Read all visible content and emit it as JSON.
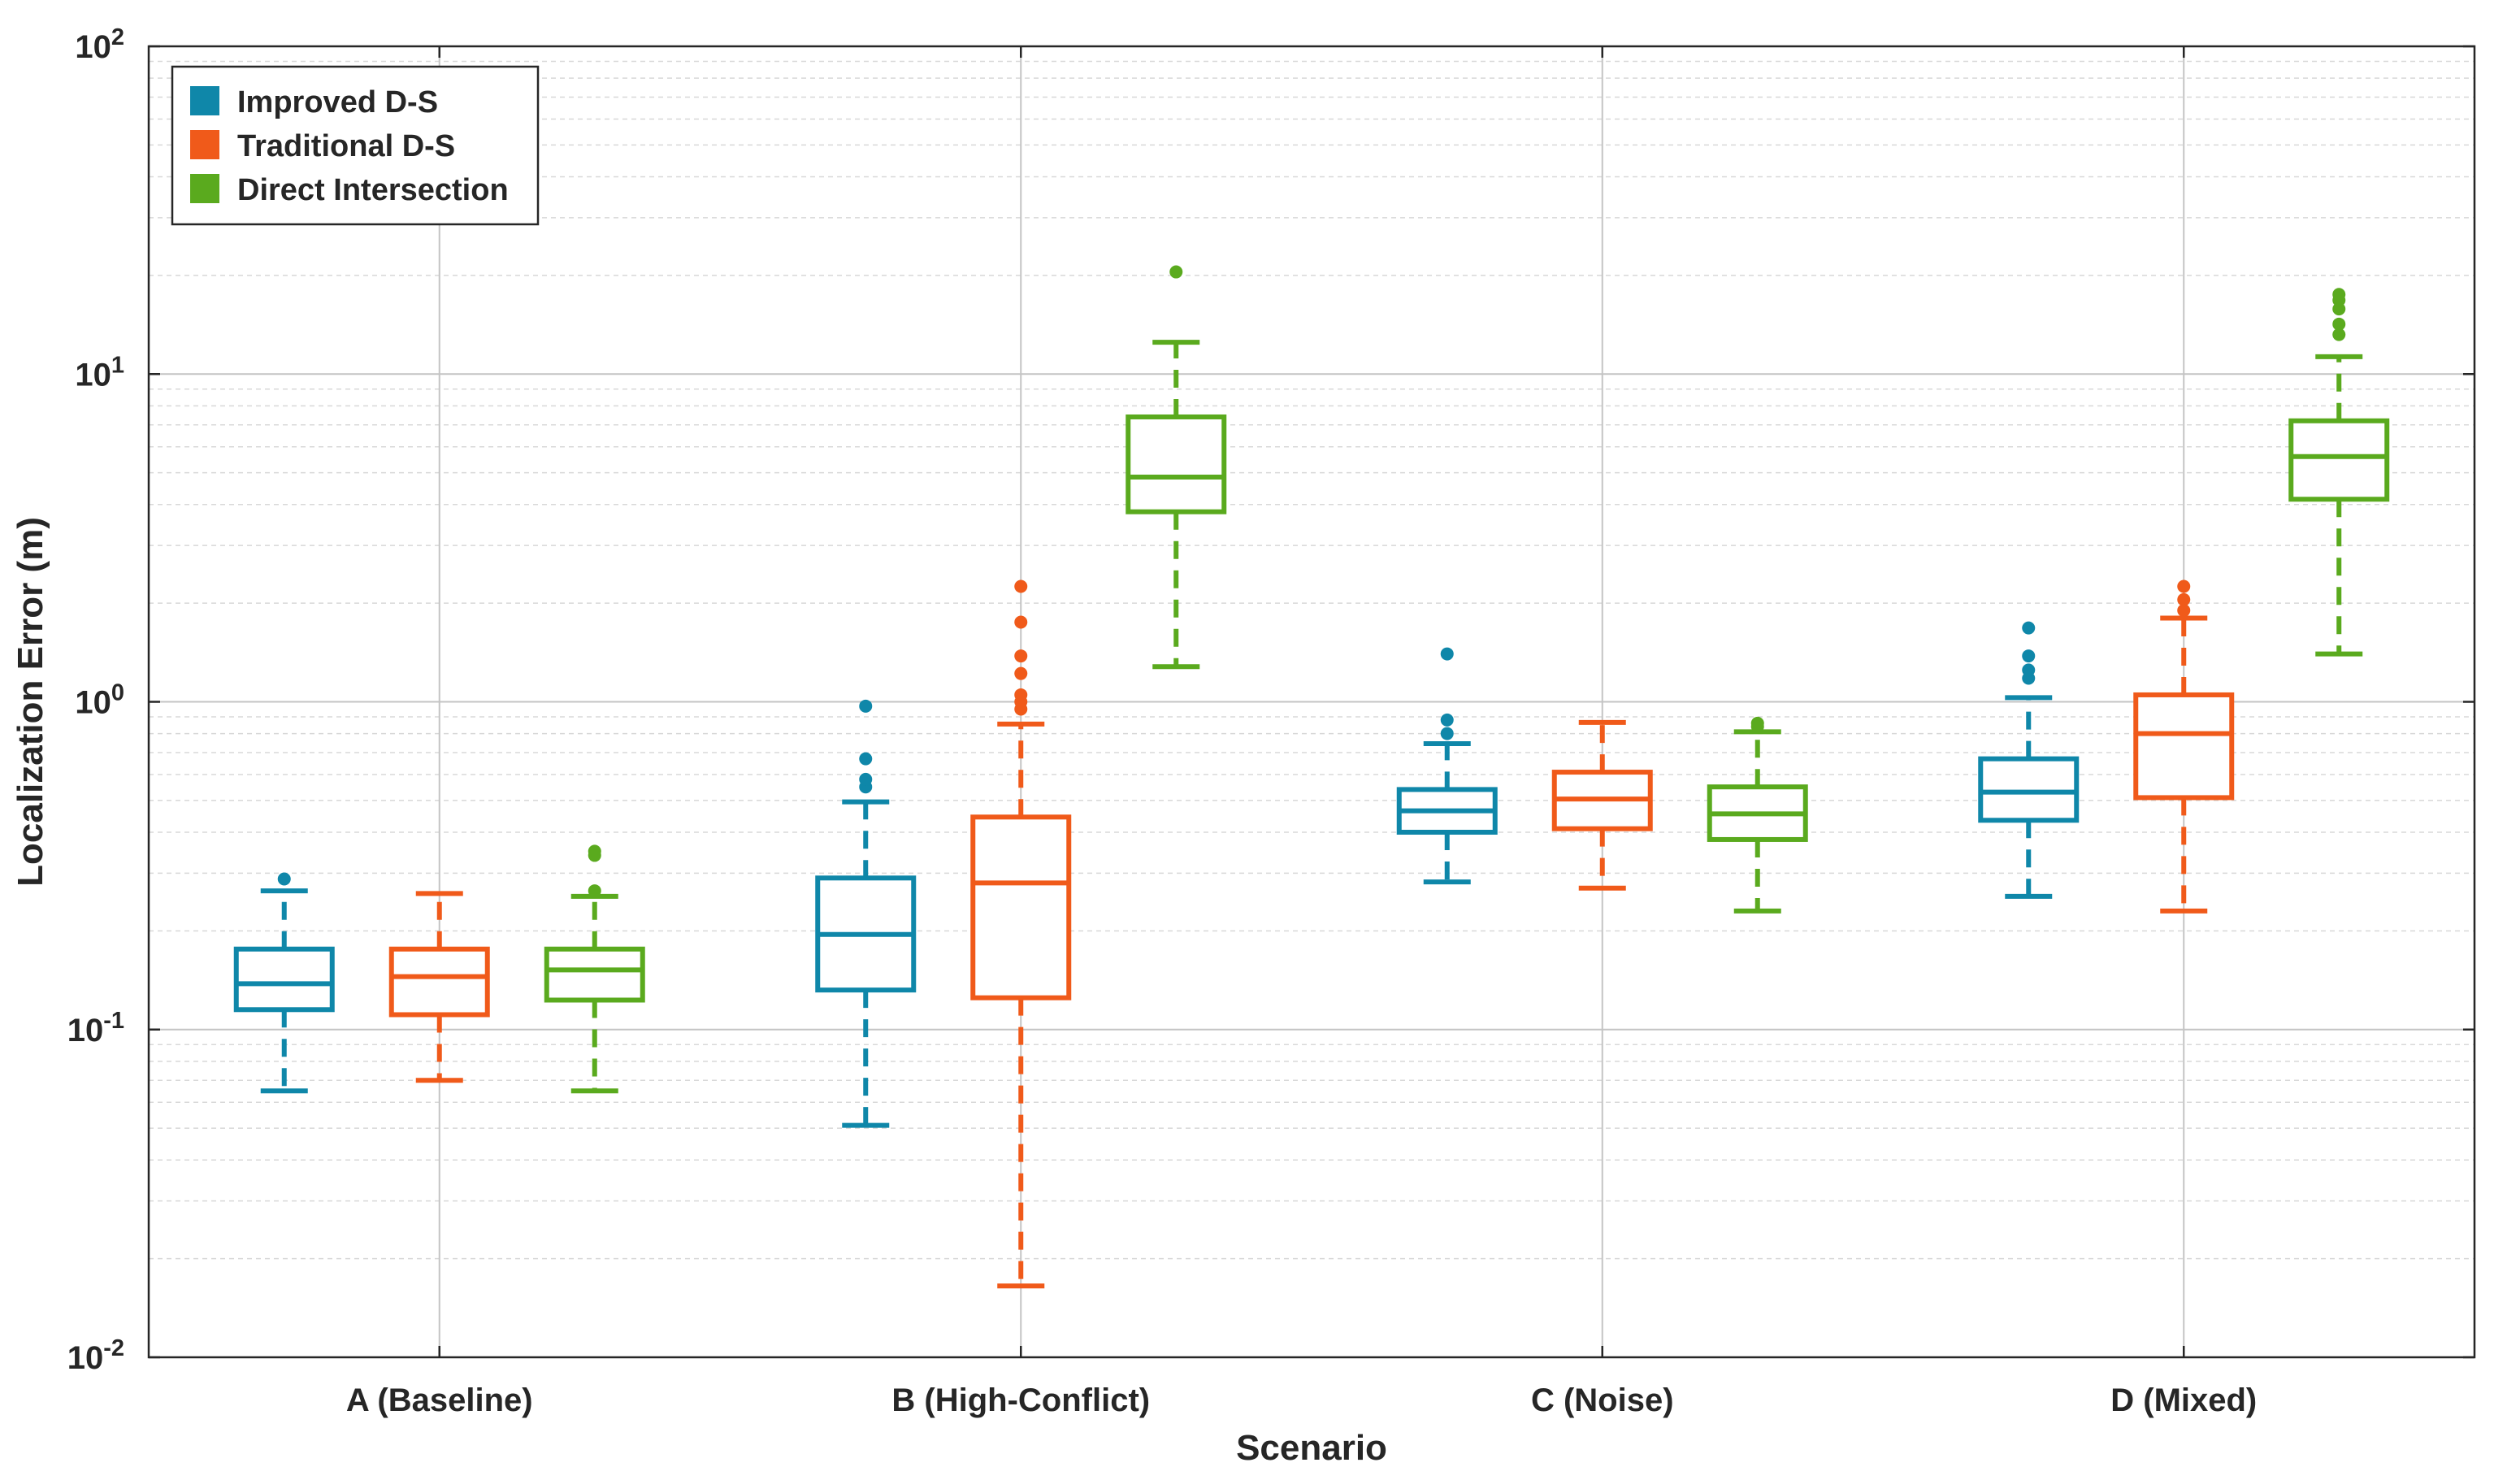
{
  "chart_data": {
    "type": "boxplot",
    "yscale": "log",
    "ylim": [
      0.01,
      100
    ],
    "xlabel": "Scenario",
    "ylabel": "Localization Error (m)",
    "grid": true,
    "legend_position": "top-left",
    "y_ticks": [
      {
        "value": 0.01,
        "base": "10",
        "exp": "-2"
      },
      {
        "value": 0.1,
        "base": "10",
        "exp": "-1"
      },
      {
        "value": 1,
        "base": "10",
        "exp": "0"
      },
      {
        "value": 10,
        "base": "10",
        "exp": "1"
      },
      {
        "value": 100,
        "base": "10",
        "exp": "2"
      }
    ],
    "categories": [
      "A (Baseline)",
      "B (High-Conflict)",
      "C (Noise)",
      "D (Mixed)"
    ],
    "series": [
      {
        "name": "Improved D-S",
        "color": "#0f87a9",
        "boxes": [
          {
            "whisker_low": 0.065,
            "q1": 0.115,
            "median": 0.138,
            "q3": 0.176,
            "whisker_high": 0.265,
            "outliers": [
              0.288
            ]
          },
          {
            "whisker_low": 0.051,
            "q1": 0.132,
            "median": 0.195,
            "q3": 0.29,
            "whisker_high": 0.495,
            "outliers": [
              0.55,
              0.58,
              0.67,
              0.97
            ]
          },
          {
            "whisker_low": 0.282,
            "q1": 0.4,
            "median": 0.465,
            "q3": 0.54,
            "whisker_high": 0.745,
            "outliers": [
              0.8,
              0.88,
              1.4
            ]
          },
          {
            "whisker_low": 0.255,
            "q1": 0.435,
            "median": 0.53,
            "q3": 0.67,
            "whisker_high": 1.03,
            "outliers": [
              1.18,
              1.25,
              1.38,
              1.68
            ]
          }
        ]
      },
      {
        "name": "Traditional D-S",
        "color": "#f05a1a",
        "boxes": [
          {
            "whisker_low": 0.07,
            "q1": 0.111,
            "median": 0.145,
            "q3": 0.176,
            "whisker_high": 0.26,
            "outliers": []
          },
          {
            "whisker_low": 0.0165,
            "q1": 0.125,
            "median": 0.28,
            "q3": 0.445,
            "whisker_high": 0.855,
            "outliers": [
              0.95,
              1.0,
              1.05,
              1.22,
              1.38,
              1.75,
              2.25
            ]
          },
          {
            "whisker_low": 0.27,
            "q1": 0.41,
            "median": 0.505,
            "q3": 0.61,
            "whisker_high": 0.865,
            "outliers": []
          },
          {
            "whisker_low": 0.23,
            "q1": 0.51,
            "median": 0.8,
            "q3": 1.05,
            "whisker_high": 1.8,
            "outliers": [
              1.9,
              2.05,
              2.25
            ]
          }
        ]
      },
      {
        "name": "Direct Intersection",
        "color": "#5aaa1e",
        "boxes": [
          {
            "whisker_low": 0.065,
            "q1": 0.123,
            "median": 0.152,
            "q3": 0.176,
            "whisker_high": 0.255,
            "outliers": [
              0.265,
              0.34,
              0.35
            ]
          },
          {
            "whisker_low": 1.28,
            "q1": 3.8,
            "median": 4.85,
            "q3": 7.4,
            "whisker_high": 12.5,
            "outliers": [
              20.5
            ]
          },
          {
            "whisker_low": 0.23,
            "q1": 0.38,
            "median": 0.455,
            "q3": 0.55,
            "whisker_high": 0.81,
            "outliers": [
              0.84,
              0.86
            ]
          },
          {
            "whisker_low": 1.4,
            "q1": 4.15,
            "median": 5.6,
            "q3": 7.2,
            "whisker_high": 11.3,
            "outliers": [
              13.2,
              14.2,
              15.8,
              16.8,
              17.5
            ]
          }
        ]
      }
    ]
  }
}
